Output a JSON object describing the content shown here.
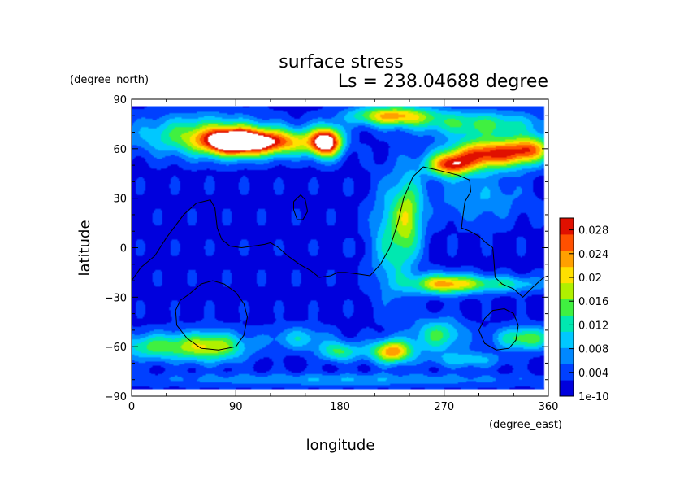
{
  "chart_data": {
    "type": "heatmap",
    "title": "surface stress",
    "subtitle": "Ls = 238.04688 degree",
    "xlabel": "longitude",
    "ylabel": "latitude",
    "x_unit": "(degree_east)",
    "y_unit": "(degree_north)",
    "xlim": [
      0,
      360
    ],
    "ylim": [
      -90,
      90
    ],
    "x_ticks": [
      0,
      90,
      180,
      270,
      360
    ],
    "x_tick_labels": [
      "0",
      "90",
      "180",
      "270",
      "360"
    ],
    "y_ticks": [
      -90,
      -60,
      -30,
      0,
      30,
      60,
      90
    ],
    "y_tick_labels": [
      "−90",
      "−60",
      "−30",
      "0",
      "30",
      "60",
      "90"
    ],
    "data_extent": {
      "lon": [
        0,
        356
      ],
      "lat": [
        -86,
        86
      ]
    },
    "colorbar": {
      "min": 1e-10,
      "max": 0.03,
      "ticks": [
        1e-10,
        0.004,
        0.008,
        0.012,
        0.016,
        0.02,
        0.024,
        0.028
      ],
      "tick_labels": [
        "1e-10",
        "0.004",
        "0.008",
        "0.012",
        "0.016",
        "0.02",
        "0.024",
        "0.028"
      ],
      "colors": [
        "#0000dd",
        "#0040ff",
        "#0088ff",
        "#00c8ff",
        "#00e8b0",
        "#40f040",
        "#b0f000",
        "#ffe000",
        "#ffa000",
        "#ff5000",
        "#e01000"
      ]
    },
    "background_value": 0.002,
    "field_features": [
      {
        "lon": 90,
        "lat": 64,
        "lon_width": 28,
        "lat_width": 8,
        "value": 0.032
      },
      {
        "lon": 168,
        "lat": 64,
        "lon_width": 14,
        "lat_width": 9,
        "value": 0.032
      },
      {
        "lon": 130,
        "lat": 64,
        "lon_width": 30,
        "lat_width": 8,
        "value": 0.018
      },
      {
        "lon": 60,
        "lat": 68,
        "lon_width": 55,
        "lat_width": 12,
        "value": 0.014
      },
      {
        "lon": 225,
        "lat": 80,
        "lon_width": 35,
        "lat_width": 6,
        "value": 0.02
      },
      {
        "lon": 300,
        "lat": 75,
        "lon_width": 55,
        "lat_width": 8,
        "value": 0.012
      },
      {
        "lon": 310,
        "lat": 57,
        "lon_width": 35,
        "lat_width": 9,
        "value": 0.026
      },
      {
        "lon": 275,
        "lat": 50,
        "lon_width": 20,
        "lat_width": 7,
        "value": 0.022
      },
      {
        "lon": 345,
        "lat": 60,
        "lon_width": 18,
        "lat_width": 8,
        "value": 0.016
      },
      {
        "lon": 225,
        "lat": 5,
        "lon_width": 18,
        "lat_width": 35,
        "value": 0.01
      },
      {
        "lon": 240,
        "lat": 20,
        "lon_width": 12,
        "lat_width": 25,
        "value": 0.012
      },
      {
        "lon": 270,
        "lat": -22,
        "lon_width": 28,
        "lat_width": 6,
        "value": 0.02
      },
      {
        "lon": 320,
        "lat": -22,
        "lon_width": 35,
        "lat_width": 5,
        "value": 0.01
      },
      {
        "lon": 20,
        "lat": -60,
        "lon_width": 35,
        "lat_width": 8,
        "value": 0.012
      },
      {
        "lon": 70,
        "lat": -60,
        "lon_width": 30,
        "lat_width": 9,
        "value": 0.016
      },
      {
        "lon": 145,
        "lat": -55,
        "lon_width": 25,
        "lat_width": 7,
        "value": 0.008
      },
      {
        "lon": 225,
        "lat": -63,
        "lon_width": 18,
        "lat_width": 7,
        "value": 0.022
      },
      {
        "lon": 180,
        "lat": -63,
        "lon_width": 18,
        "lat_width": 6,
        "value": 0.012
      },
      {
        "lon": 265,
        "lat": -53,
        "lon_width": 22,
        "lat_width": 10,
        "value": 0.012
      },
      {
        "lon": 340,
        "lat": -55,
        "lon_width": 25,
        "lat_width": 7,
        "value": 0.014
      },
      {
        "lon": 290,
        "lat": -68,
        "lon_width": 30,
        "lat_width": 5,
        "value": 0.008
      },
      {
        "lon": 180,
        "lat": -80,
        "lon_width": 180,
        "lat_width": 4,
        "value": 0.006
      },
      {
        "lon": 300,
        "lat": 30,
        "lon_width": 40,
        "lat_width": 15,
        "value": 0.006
      }
    ],
    "contours": [
      [
        [
          0,
          -20
        ],
        [
          8,
          -12
        ],
        [
          20,
          -5
        ],
        [
          30,
          6
        ],
        [
          45,
          20
        ],
        [
          56,
          27
        ],
        [
          68,
          29
        ],
        [
          72,
          24
        ],
        [
          74,
          12
        ],
        [
          78,
          5
        ],
        [
          85,
          1
        ],
        [
          95,
          0
        ],
        [
          105,
          1
        ],
        [
          115,
          2
        ],
        [
          120,
          3
        ],
        [
          127,
          0
        ],
        [
          135,
          -5
        ],
        [
          145,
          -10
        ],
        [
          155,
          -14
        ],
        [
          162,
          -18
        ],
        [
          172,
          -17
        ],
        [
          178,
          -15
        ],
        [
          185,
          -15
        ],
        [
          196,
          -16
        ],
        [
          206,
          -17
        ],
        [
          215,
          -10
        ],
        [
          223,
          0
        ],
        [
          230,
          15
        ],
        [
          235,
          30
        ],
        [
          243,
          43
        ],
        [
          252,
          49
        ],
        [
          265,
          47
        ],
        [
          282,
          44
        ],
        [
          292,
          41
        ],
        [
          293,
          34
        ],
        [
          288,
          28
        ],
        [
          286,
          18
        ],
        [
          285,
          12
        ],
        [
          292,
          10
        ],
        [
          300,
          7
        ],
        [
          306,
          3
        ],
        [
          312,
          0
        ],
        [
          313,
          -8
        ],
        [
          314,
          -18
        ],
        [
          320,
          -22
        ],
        [
          330,
          -25
        ],
        [
          338,
          -30
        ],
        [
          345,
          -25
        ],
        [
          356,
          -18
        ],
        [
          360,
          -17
        ]
      ],
      [
        [
          140,
          28
        ],
        [
          146,
          32
        ],
        [
          150,
          29
        ],
        [
          152,
          22
        ],
        [
          148,
          17
        ],
        [
          143,
          17
        ],
        [
          140,
          23
        ],
        [
          140,
          28
        ]
      ],
      [
        [
          50,
          -28
        ],
        [
          60,
          -22
        ],
        [
          70,
          -20
        ],
        [
          80,
          -22
        ],
        [
          90,
          -27
        ],
        [
          97,
          -34
        ],
        [
          100,
          -42
        ],
        [
          97,
          -53
        ],
        [
          90,
          -60
        ],
        [
          75,
          -62
        ],
        [
          60,
          -61
        ],
        [
          48,
          -55
        ],
        [
          39,
          -47
        ],
        [
          38,
          -38
        ],
        [
          42,
          -32
        ],
        [
          50,
          -28
        ]
      ],
      [
        [
          300,
          -50
        ],
        [
          305,
          -43
        ],
        [
          312,
          -38
        ],
        [
          322,
          -37
        ],
        [
          330,
          -40
        ],
        [
          334,
          -47
        ],
        [
          332,
          -56
        ],
        [
          326,
          -61
        ],
        [
          315,
          -62
        ],
        [
          305,
          -58
        ],
        [
          300,
          -50
        ]
      ]
    ]
  }
}
